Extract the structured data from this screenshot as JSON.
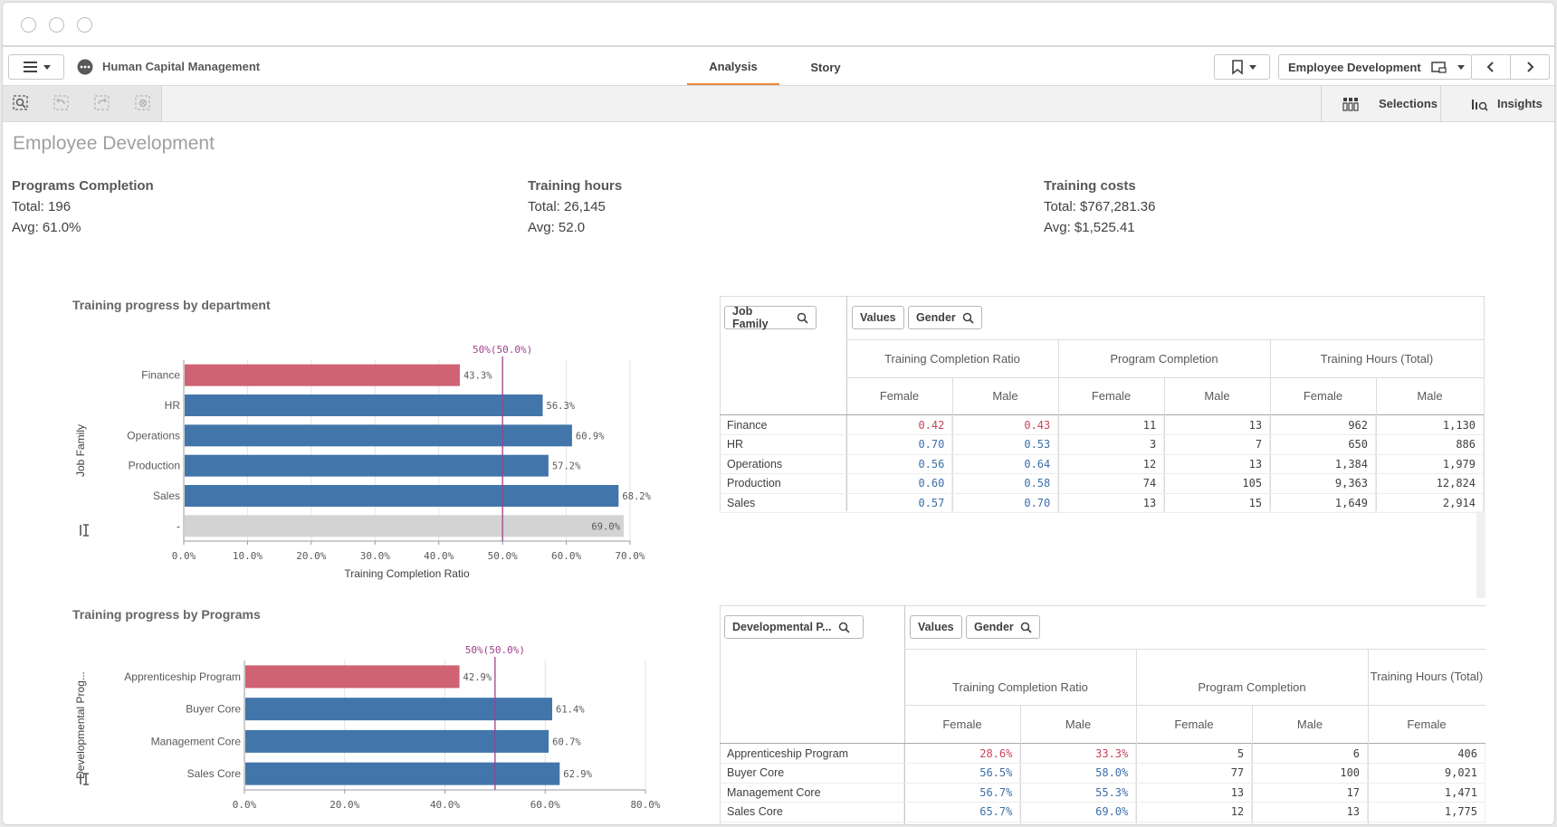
{
  "app": {
    "name": "Human Capital Management",
    "tabs": [
      "Analysis",
      "Story"
    ],
    "active_tab": "Analysis",
    "sheet_selector": "Employee Development"
  },
  "toolbar": {
    "selections": "Selections",
    "insights": "Insights"
  },
  "sheet": {
    "title": "Employee Development"
  },
  "kpis": [
    {
      "title": "Programs Completion",
      "total": "Total: 196",
      "avg": "Avg: 61.0%"
    },
    {
      "title": "Training hours",
      "total": "Total: 26,145",
      "avg": "Avg: 52.0"
    },
    {
      "title": "Training costs",
      "total": "Total: $767,281.36",
      "avg": "Avg: $1,525.41"
    }
  ],
  "colors": {
    "red": "#cf6273",
    "blue": "#4276aa",
    "gray": "#d3d3d3",
    "ref": "#a03e8c"
  },
  "chart_data": [
    {
      "type": "bar",
      "title": "Training progress by department",
      "categories": [
        "Finance",
        "HR",
        "Operations",
        "Production",
        "Sales",
        "-"
      ],
      "values": [
        43.3,
        56.3,
        60.9,
        57.2,
        68.2,
        69.0
      ],
      "labels": [
        "43.3%",
        "56.3%",
        "60.9%",
        "57.2%",
        "68.2%",
        "69.0%"
      ],
      "colors": [
        "red",
        "blue",
        "blue",
        "blue",
        "blue",
        "gray"
      ],
      "xlabel": "Training Completion Ratio",
      "ylabel": "Job Family",
      "xlim": [
        0,
        70
      ],
      "ticks": [
        "0.0%",
        "10.0%",
        "20.0%",
        "30.0%",
        "40.0%",
        "50.0%",
        "60.0%",
        "70.0%"
      ],
      "reference": {
        "value": 50,
        "label": "50%(50.0%)"
      }
    },
    {
      "type": "bar",
      "title": "Training progress by Programs",
      "categories": [
        "Apprenticeship Program",
        "Buyer Core",
        "Management Core",
        "Sales Core"
      ],
      "values": [
        42.9,
        61.4,
        60.7,
        62.9
      ],
      "labels": [
        "42.9%",
        "61.4%",
        "60.7%",
        "62.9%"
      ],
      "colors": [
        "red",
        "blue",
        "blue",
        "blue"
      ],
      "xlabel": "",
      "ylabel": "Developmental Prog...",
      "xlim": [
        0,
        80
      ],
      "ticks": [
        "0.0%",
        "20.0%",
        "40.0%",
        "60.0%",
        "80.0%"
      ],
      "reference": {
        "value": 50,
        "label": "50%(50.0%)"
      }
    }
  ],
  "table1": {
    "dim_pill": "Job Family",
    "values_pill": "Values",
    "gender_pill": "Gender",
    "groups": [
      "Training Completion Ratio",
      "Program Completion",
      "Training Hours (Total)"
    ],
    "sub": [
      "Female",
      "Male",
      "Female",
      "Male",
      "Female",
      "Male"
    ],
    "rows": [
      {
        "name": "Finance",
        "vals": [
          "0.42",
          "0.43",
          "11",
          "13",
          "962",
          "1,130"
        ],
        "c": [
          "red",
          "red"
        ]
      },
      {
        "name": "HR",
        "vals": [
          "0.70",
          "0.53",
          "3",
          "7",
          "650",
          "886"
        ],
        "c": [
          "blue",
          "blue"
        ]
      },
      {
        "name": "Operations",
        "vals": [
          "0.56",
          "0.64",
          "12",
          "13",
          "1,384",
          "1,979"
        ],
        "c": [
          "blue",
          "blue"
        ]
      },
      {
        "name": "Production",
        "vals": [
          "0.60",
          "0.58",
          "74",
          "105",
          "9,363",
          "12,824"
        ],
        "c": [
          "blue",
          "blue"
        ]
      },
      {
        "name": "Sales",
        "vals": [
          "0.57",
          "0.70",
          "13",
          "15",
          "1,649",
          "2,914"
        ],
        "c": [
          "blue",
          "blue"
        ]
      }
    ]
  },
  "table2": {
    "dim_pill": "Developmental P...",
    "values_pill": "Values",
    "gender_pill": "Gender",
    "groups": [
      "Training Completion Ratio",
      "Program Completion",
      "Training Hours (Total)"
    ],
    "sub": [
      "Female",
      "Male",
      "Female",
      "Male",
      "Female"
    ],
    "rows": [
      {
        "name": "Apprenticeship Program",
        "vals": [
          "28.6%",
          "33.3%",
          "5",
          "6",
          "406"
        ],
        "c": [
          "red",
          "red"
        ]
      },
      {
        "name": "Buyer Core",
        "vals": [
          "56.5%",
          "58.0%",
          "77",
          "100",
          "9,021"
        ],
        "c": [
          "blue",
          "blue"
        ]
      },
      {
        "name": "Management Core",
        "vals": [
          "56.7%",
          "55.3%",
          "13",
          "17",
          "1,471"
        ],
        "c": [
          "blue",
          "blue"
        ]
      },
      {
        "name": "Sales Core",
        "vals": [
          "65.7%",
          "69.0%",
          "12",
          "13",
          "1,775"
        ],
        "c": [
          "blue",
          "blue"
        ]
      }
    ]
  }
}
